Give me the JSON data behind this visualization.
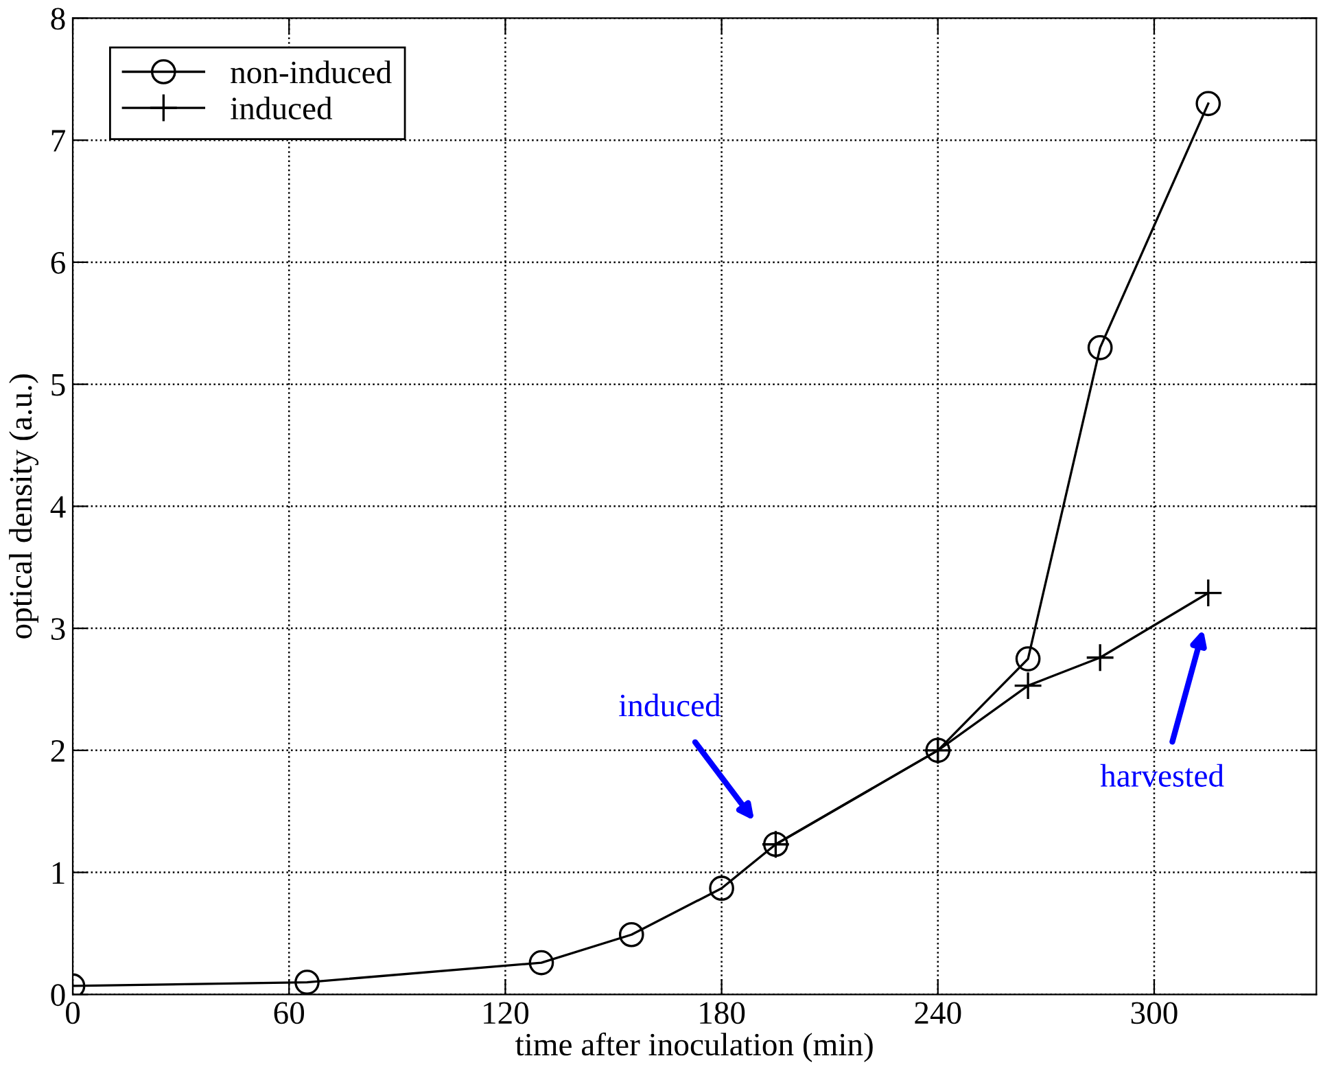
{
  "chart_data": {
    "type": "line",
    "xlabel": "time after inoculation (min)",
    "ylabel": "optical density (a.u.)",
    "series": [
      {
        "name": "non-induced",
        "color": "#000000",
        "marker": "circle",
        "x": [
          0,
          65,
          130,
          155,
          180,
          195,
          240,
          265,
          285,
          315
        ],
        "values": [
          0.07,
          0.1,
          0.26,
          0.49,
          0.87,
          1.23,
          2.0,
          2.75,
          5.3,
          7.3
        ]
      },
      {
        "name": "induced",
        "color": "#000000",
        "marker": "cross",
        "x": [
          195,
          240,
          265,
          285,
          315
        ],
        "values": [
          1.23,
          2.0,
          2.53,
          2.76,
          3.29
        ]
      }
    ],
    "xlim": [
      0,
      345
    ],
    "xticks": [
      0,
      60,
      120,
      180,
      240,
      300
    ],
    "ylim": [
      0,
      8
    ],
    "yticks": [
      0,
      1,
      2,
      3,
      4,
      5,
      6,
      7,
      8
    ],
    "grid": true,
    "legend": "top left",
    "line_style": "solid",
    "annotations": [
      "induced",
      "harvested"
    ]
  }
}
